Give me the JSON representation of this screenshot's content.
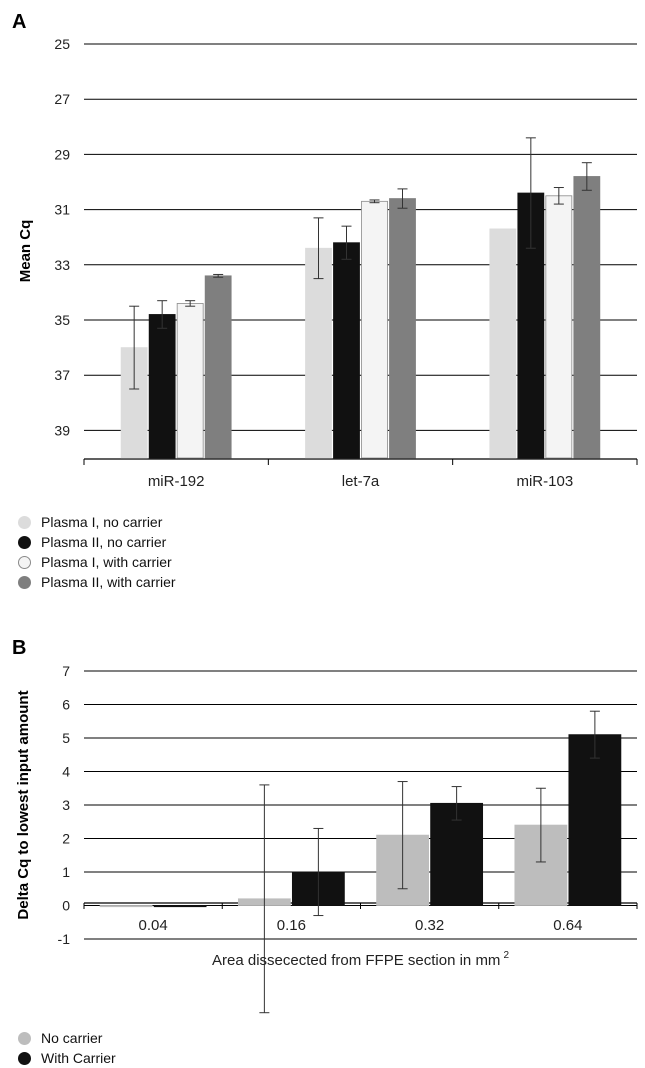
{
  "panels": {
    "a": {
      "letter": "A"
    },
    "b": {
      "letter": "B"
    }
  },
  "chart_data": [
    {
      "type": "bar",
      "title": "",
      "xlabel": "",
      "ylabel": "Mean Cq",
      "y_axis_inverted": true,
      "ylim": [
        25,
        40
      ],
      "yticks": [
        25,
        27,
        29,
        31,
        33,
        35,
        37,
        39
      ],
      "grid": true,
      "legend_position": "bottom-left",
      "categories": [
        "miR-192",
        "let-7a",
        "miR-103"
      ],
      "series": [
        {
          "name": "Plasma I, no carrier",
          "color": "#dcdcdc",
          "stroke": "#dcdcdc",
          "values": [
            36.0,
            32.4,
            31.7
          ],
          "errors": [
            1.5,
            1.1,
            0.0
          ]
        },
        {
          "name": "Plasma II, no carrier",
          "color": "#111111",
          "stroke": "#111111",
          "values": [
            34.8,
            32.2,
            30.4
          ],
          "errors": [
            0.5,
            0.6,
            2.0
          ]
        },
        {
          "name": "Plasma I, with carrier",
          "color": "#f4f4f4",
          "stroke": "#8a8a8a",
          "values": [
            34.4,
            30.7,
            30.5
          ],
          "errors": [
            0.1,
            0.05,
            0.3
          ]
        },
        {
          "name": "Plasma II, with carrier",
          "color": "#7f7f7f",
          "stroke": "#7f7f7f",
          "values": [
            33.4,
            30.6,
            29.8
          ],
          "errors": [
            0.05,
            0.35,
            0.5
          ]
        }
      ]
    },
    {
      "type": "bar",
      "title": "",
      "xlabel": "Area dissecected from FFPE section in mm",
      "xlabel_superscript": "2",
      "ylabel": "Delta Cq to lowest input amount",
      "ylim": [
        -1,
        7
      ],
      "yticks": [
        -1,
        0,
        1,
        2,
        3,
        4,
        5,
        6,
        7
      ],
      "grid": true,
      "legend_position": "bottom-left",
      "categories": [
        "0.04",
        "0.16",
        "0.32",
        "0.64"
      ],
      "series": [
        {
          "name": "No carrier",
          "color": "#bdbdbd",
          "stroke": "#bdbdbd",
          "values": [
            0.0,
            0.2,
            2.1,
            2.4
          ],
          "errors": [
            0.0,
            3.4,
            1.6,
            1.1
          ]
        },
        {
          "name": "With Carrier",
          "color": "#111111",
          "stroke": "#111111",
          "values": [
            0.0,
            1.0,
            3.05,
            5.1
          ],
          "errors": [
            0.0,
            1.3,
            0.5,
            0.7
          ]
        }
      ]
    }
  ]
}
